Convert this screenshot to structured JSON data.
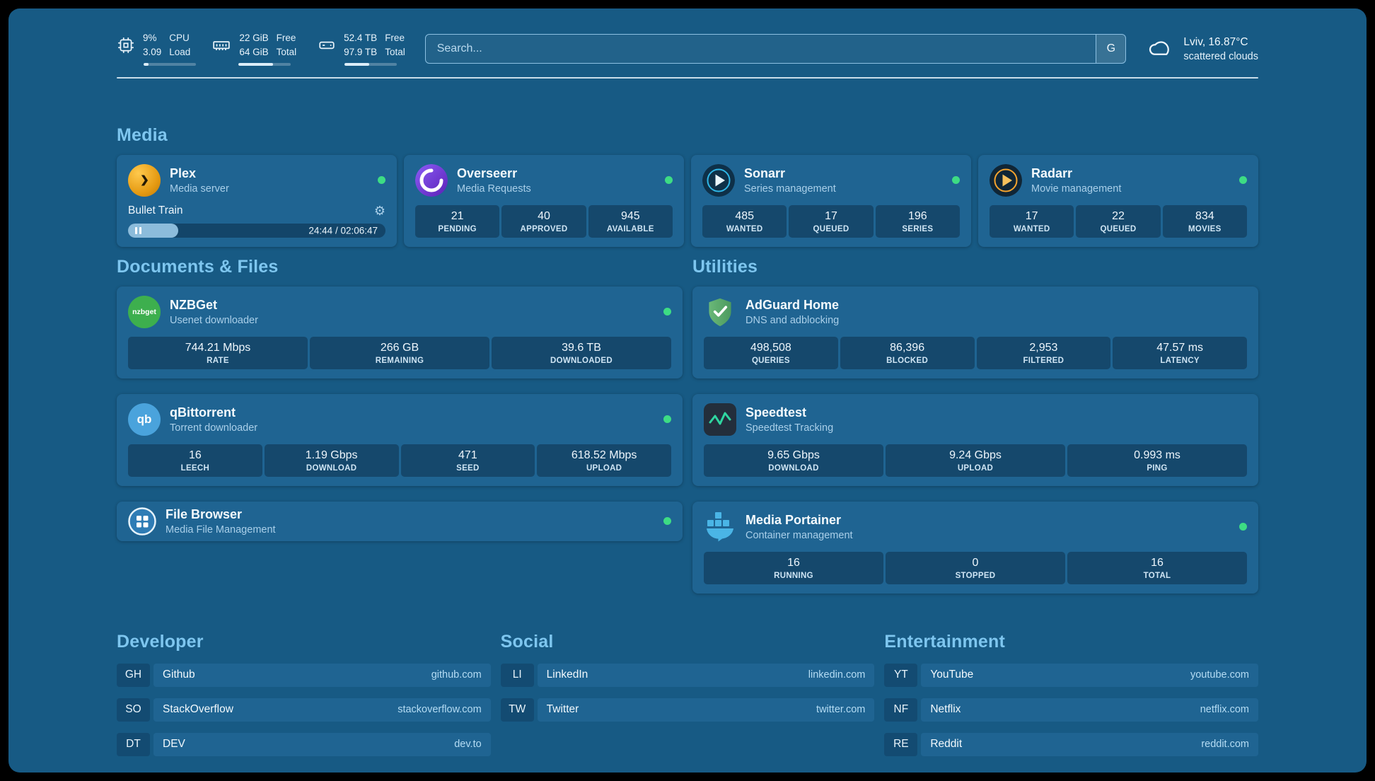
{
  "topbar": {
    "cpu": {
      "value_top": "9%",
      "value_bottom": "3.09",
      "label_top": "CPU",
      "label_bottom": "Load",
      "progress": 9
    },
    "ram": {
      "value_top": "22 GiB",
      "value_bottom": "64 GiB",
      "label_top": "Free",
      "label_bottom": "Total",
      "progress": 66
    },
    "disk": {
      "value_top": "52.4 TB",
      "value_bottom": "97.9 TB",
      "label_top": "Free",
      "label_bottom": "Total",
      "progress": 47
    },
    "search": {
      "placeholder": "Search...",
      "engine": "G"
    },
    "weather": {
      "location": "Lviv, 16.87°C",
      "condition": "scattered clouds"
    }
  },
  "sections": {
    "media": "Media",
    "documents": "Documents & Files",
    "utilities": "Utilities",
    "developer": "Developer",
    "social": "Social",
    "entertainment": "Entertainment"
  },
  "apps": {
    "plex": {
      "name": "Plex",
      "subtitle": "Media server",
      "now_playing": "Bullet Train",
      "time": "24:44 / 02:06:47",
      "progress": 19.5
    },
    "overseerr": {
      "name": "Overseerr",
      "subtitle": "Media Requests",
      "stats": [
        {
          "value": "21",
          "label": "PENDING"
        },
        {
          "value": "40",
          "label": "APPROVED"
        },
        {
          "value": "945",
          "label": "AVAILABLE"
        }
      ]
    },
    "sonarr": {
      "name": "Sonarr",
      "subtitle": "Series management",
      "stats": [
        {
          "value": "485",
          "label": "WANTED"
        },
        {
          "value": "17",
          "label": "QUEUED"
        },
        {
          "value": "196",
          "label": "SERIES"
        }
      ]
    },
    "radarr": {
      "name": "Radarr",
      "subtitle": "Movie management",
      "stats": [
        {
          "value": "17",
          "label": "WANTED"
        },
        {
          "value": "22",
          "label": "QUEUED"
        },
        {
          "value": "834",
          "label": "MOVIES"
        }
      ]
    },
    "nzbget": {
      "name": "NZBGet",
      "subtitle": "Usenet downloader",
      "icon_text": "nzbget",
      "stats": [
        {
          "value": "744.21 Mbps",
          "label": "RATE"
        },
        {
          "value": "266 GB",
          "label": "REMAINING"
        },
        {
          "value": "39.6 TB",
          "label": "DOWNLOADED"
        }
      ]
    },
    "qbittorrent": {
      "name": "qBittorrent",
      "subtitle": "Torrent downloader",
      "icon_text": "qb",
      "stats": [
        {
          "value": "16",
          "label": "LEECH"
        },
        {
          "value": "1.19 Gbps",
          "label": "DOWNLOAD"
        },
        {
          "value": "471",
          "label": "SEED"
        },
        {
          "value": "618.52 Mbps",
          "label": "UPLOAD"
        }
      ]
    },
    "filebrowser": {
      "name": "File Browser",
      "subtitle": "Media File Management"
    },
    "adguard": {
      "name": "AdGuard Home",
      "subtitle": "DNS and adblocking",
      "stats": [
        {
          "value": "498,508",
          "label": "QUERIES"
        },
        {
          "value": "86,396",
          "label": "BLOCKED"
        },
        {
          "value": "2,953",
          "label": "FILTERED"
        },
        {
          "value": "47.57 ms",
          "label": "LATENCY"
        }
      ]
    },
    "speedtest": {
      "name": "Speedtest",
      "subtitle": "Speedtest Tracking",
      "stats": [
        {
          "value": "9.65 Gbps",
          "label": "DOWNLOAD"
        },
        {
          "value": "9.24 Gbps",
          "label": "UPLOAD"
        },
        {
          "value": "0.993 ms",
          "label": "PING"
        }
      ]
    },
    "portainer": {
      "name": "Media Portainer",
      "subtitle": "Container management",
      "stats": [
        {
          "value": "16",
          "label": "RUNNING"
        },
        {
          "value": "0",
          "label": "STOPPED"
        },
        {
          "value": "16",
          "label": "TOTAL"
        }
      ]
    }
  },
  "bookmarks": {
    "developer": [
      {
        "abbr": "GH",
        "name": "Github",
        "domain": "github.com"
      },
      {
        "abbr": "SO",
        "name": "StackOverflow",
        "domain": "stackoverflow.com"
      },
      {
        "abbr": "DT",
        "name": "DEV",
        "domain": "dev.to"
      }
    ],
    "social": [
      {
        "abbr": "LI",
        "name": "LinkedIn",
        "domain": "linkedin.com"
      },
      {
        "abbr": "TW",
        "name": "Twitter",
        "domain": "twitter.com"
      }
    ],
    "entertainment": [
      {
        "abbr": "YT",
        "name": "YouTube",
        "domain": "youtube.com"
      },
      {
        "abbr": "NF",
        "name": "Netflix",
        "domain": "netflix.com"
      },
      {
        "abbr": "RE",
        "name": "Reddit",
        "domain": "reddit.com"
      }
    ]
  },
  "colors": {
    "accent": "#7ec6ef",
    "status_online": "#3ddc84",
    "background": "#175a84",
    "card": "#1f6492"
  }
}
